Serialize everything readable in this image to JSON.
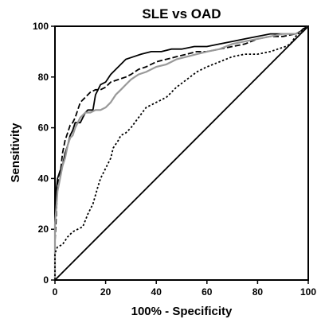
{
  "chart_data": {
    "type": "line",
    "title": "SLE  vs OAD",
    "xlabel": "100% - Specificity",
    "ylabel": "Sensitivity",
    "xlim": [
      0,
      100
    ],
    "ylim": [
      0,
      100
    ],
    "xticks": [
      0,
      20,
      40,
      60,
      80,
      100
    ],
    "yticks": [
      0,
      20,
      40,
      60,
      80,
      100
    ],
    "grid": false,
    "legend": "none",
    "series": [
      {
        "style": "solid",
        "color": "#000000",
        "points": [
          [
            0,
            0
          ],
          [
            0,
            20
          ],
          [
            0.5,
            35
          ],
          [
            1,
            40
          ],
          [
            2,
            43
          ],
          [
            3,
            45
          ],
          [
            4,
            50
          ],
          [
            5,
            53
          ],
          [
            6,
            57
          ],
          [
            7,
            59
          ],
          [
            8,
            62
          ],
          [
            10,
            62
          ],
          [
            11,
            64
          ],
          [
            12,
            66
          ],
          [
            13,
            67
          ],
          [
            15,
            67
          ],
          [
            16,
            73
          ],
          [
            17,
            75
          ],
          [
            18,
            77
          ],
          [
            20,
            78
          ],
          [
            22,
            81
          ],
          [
            24,
            83
          ],
          [
            26,
            85
          ],
          [
            28,
            87
          ],
          [
            31,
            88
          ],
          [
            34,
            89
          ],
          [
            38,
            90
          ],
          [
            42,
            90
          ],
          [
            46,
            91
          ],
          [
            50,
            91
          ],
          [
            55,
            92
          ],
          [
            60,
            92
          ],
          [
            65,
            93
          ],
          [
            70,
            94
          ],
          [
            75,
            95
          ],
          [
            80,
            96
          ],
          [
            85,
            97
          ],
          [
            90,
            97
          ],
          [
            95,
            97
          ],
          [
            97,
            98
          ],
          [
            98,
            99
          ],
          [
            100,
            100
          ]
        ]
      },
      {
        "style": "dashed",
        "color": "#000000",
        "points": [
          [
            0,
            0
          ],
          [
            0,
            15
          ],
          [
            0.5,
            25
          ],
          [
            1,
            38
          ],
          [
            2,
            41
          ],
          [
            3,
            50
          ],
          [
            4,
            55
          ],
          [
            5,
            58
          ],
          [
            6,
            61
          ],
          [
            7,
            62
          ],
          [
            8,
            64
          ],
          [
            9,
            67
          ],
          [
            10,
            70
          ],
          [
            12,
            72
          ],
          [
            14,
            74
          ],
          [
            16,
            75
          ],
          [
            18,
            75
          ],
          [
            20,
            76
          ],
          [
            22,
            78
          ],
          [
            25,
            79
          ],
          [
            28,
            80
          ],
          [
            30,
            81
          ],
          [
            33,
            83
          ],
          [
            36,
            84
          ],
          [
            40,
            86
          ],
          [
            44,
            87
          ],
          [
            48,
            88
          ],
          [
            52,
            89
          ],
          [
            56,
            90
          ],
          [
            60,
            90
          ],
          [
            65,
            91
          ],
          [
            70,
            92
          ],
          [
            75,
            93
          ],
          [
            80,
            95
          ],
          [
            85,
            96
          ],
          [
            90,
            96
          ],
          [
            95,
            97
          ],
          [
            97,
            98
          ],
          [
            99,
            99
          ],
          [
            100,
            100
          ]
        ]
      },
      {
        "style": "solid",
        "color": "#999999",
        "points": [
          [
            0,
            0
          ],
          [
            0,
            22
          ],
          [
            0.5,
            28
          ],
          [
            1,
            35
          ],
          [
            2,
            40
          ],
          [
            3,
            45
          ],
          [
            4,
            48
          ],
          [
            5,
            53
          ],
          [
            6,
            56
          ],
          [
            7,
            57
          ],
          [
            8,
            60
          ],
          [
            9,
            62
          ],
          [
            10,
            64
          ],
          [
            12,
            66
          ],
          [
            14,
            66
          ],
          [
            16,
            67
          ],
          [
            18,
            67
          ],
          [
            20,
            68
          ],
          [
            22,
            70
          ],
          [
            24,
            73
          ],
          [
            26,
            75
          ],
          [
            28,
            77
          ],
          [
            30,
            79
          ],
          [
            33,
            81
          ],
          [
            36,
            82
          ],
          [
            40,
            84
          ],
          [
            44,
            85
          ],
          [
            48,
            87
          ],
          [
            52,
            88
          ],
          [
            56,
            89
          ],
          [
            60,
            90
          ],
          [
            65,
            91
          ],
          [
            70,
            93
          ],
          [
            75,
            94
          ],
          [
            80,
            95
          ],
          [
            85,
            96
          ],
          [
            90,
            97
          ],
          [
            95,
            97
          ],
          [
            98,
            98
          ],
          [
            100,
            100
          ]
        ]
      },
      {
        "style": "dotted",
        "color": "#000000",
        "points": [
          [
            0,
            0
          ],
          [
            0,
            10
          ],
          [
            0.5,
            12
          ],
          [
            1,
            13
          ],
          [
            3,
            14
          ],
          [
            5,
            17
          ],
          [
            7,
            19
          ],
          [
            9,
            20
          ],
          [
            11,
            21
          ],
          [
            13,
            26
          ],
          [
            15,
            30
          ],
          [
            17,
            37
          ],
          [
            18,
            40
          ],
          [
            20,
            44
          ],
          [
            22,
            48
          ],
          [
            23,
            52
          ],
          [
            25,
            55
          ],
          [
            26,
            57
          ],
          [
            28,
            58
          ],
          [
            30,
            60
          ],
          [
            33,
            64
          ],
          [
            36,
            68
          ],
          [
            40,
            70
          ],
          [
            44,
            72
          ],
          [
            48,
            76
          ],
          [
            52,
            79
          ],
          [
            56,
            82
          ],
          [
            60,
            84
          ],
          [
            65,
            86
          ],
          [
            70,
            88
          ],
          [
            75,
            89
          ],
          [
            80,
            89
          ],
          [
            85,
            90
          ],
          [
            88,
            91
          ],
          [
            91,
            92
          ],
          [
            93,
            93
          ],
          [
            95,
            96
          ],
          [
            97,
            98
          ],
          [
            100,
            100
          ]
        ]
      },
      {
        "style": "solid",
        "color": "#000000",
        "points": [
          [
            0,
            0
          ],
          [
            100,
            100
          ]
        ]
      }
    ]
  }
}
